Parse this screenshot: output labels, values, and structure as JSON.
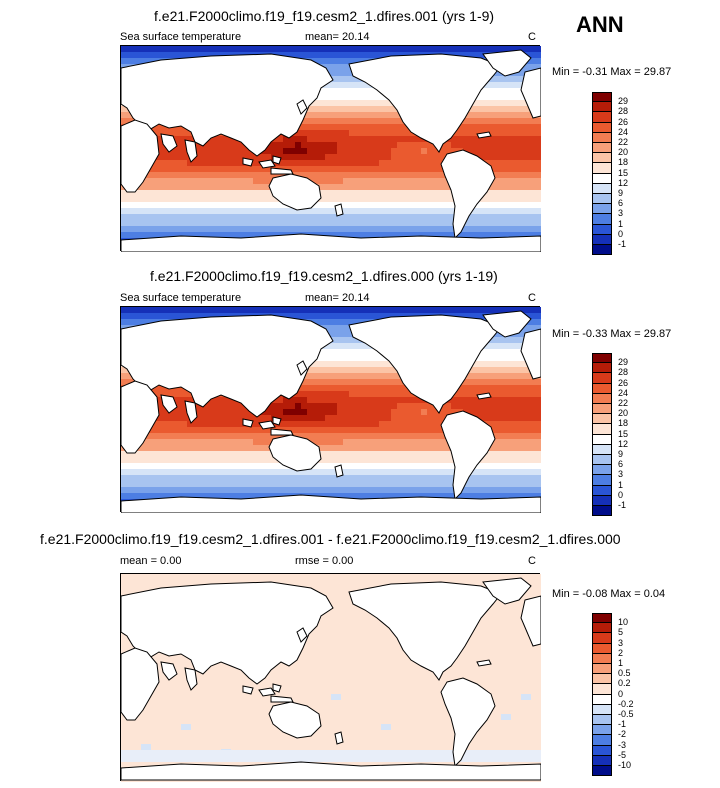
{
  "season": "ANN",
  "panels": [
    {
      "title": "f.e21.F2000climo.f19_f19.cesm2_1.dfires.001 (yrs 1-9)",
      "left_label": "Sea surface temperature",
      "center_label": "mean=  20.14",
      "units": "C",
      "minmax": "Min =  -0.31 Max =  29.87",
      "colorbar": {
        "levels": [
          "29",
          "28",
          "26",
          "24",
          "22",
          "20",
          "18",
          "15",
          "12",
          "9",
          "6",
          "3",
          "1",
          "0",
          "-1"
        ],
        "colors": [
          "#7f0000",
          "#b51c08",
          "#d83a1a",
          "#ea5a2f",
          "#f27d52",
          "#f7a07a",
          "#fbc4a6",
          "#fde5d6",
          "#ffffff",
          "#d6e4f7",
          "#a8c4f0",
          "#7aa2ea",
          "#4d7ee3",
          "#2a55d6",
          "#1530b8",
          "#000d8a"
        ]
      }
    },
    {
      "title": "f.e21.F2000climo.f19_f19.cesm2_1.dfires.000 (yrs 1-19)",
      "left_label": "Sea surface temperature",
      "center_label": "mean=  20.14",
      "units": "C",
      "minmax": "Min =  -0.33 Max =  29.87",
      "colorbar": {
        "levels": [
          "29",
          "28",
          "26",
          "24",
          "22",
          "20",
          "18",
          "15",
          "12",
          "9",
          "6",
          "3",
          "1",
          "0",
          "-1"
        ],
        "colors": [
          "#7f0000",
          "#b51c08",
          "#d83a1a",
          "#ea5a2f",
          "#f27d52",
          "#f7a07a",
          "#fbc4a6",
          "#fde5d6",
          "#ffffff",
          "#d6e4f7",
          "#a8c4f0",
          "#7aa2ea",
          "#4d7ee3",
          "#2a55d6",
          "#1530b8",
          "#000d8a"
        ]
      }
    },
    {
      "title": "f.e21.F2000climo.f19_f19.cesm2_1.dfires.001 - f.e21.F2000climo.f19_f19.cesm2_1.dfires.000",
      "left_label": "mean =   0.00",
      "center_label": "rmse =   0.00",
      "units": "C",
      "minmax": "Min =  -0.08 Max =   0.04",
      "colorbar": {
        "levels": [
          "10",
          "5",
          "3",
          "2",
          "1",
          "0.5",
          "0.2",
          "0",
          "-0.2",
          "-0.5",
          "-1",
          "-2",
          "-3",
          "-5",
          "-10"
        ],
        "colors": [
          "#7f0000",
          "#b51c08",
          "#d83a1a",
          "#ea5a2f",
          "#f27d52",
          "#f7a07a",
          "#fbc4a6",
          "#fde5d6",
          "#ffffff",
          "#d6e4f7",
          "#a8c4f0",
          "#7aa2ea",
          "#4d7ee3",
          "#2a55d6",
          "#1530b8",
          "#000d8a"
        ]
      }
    }
  ],
  "chart_data": [
    {
      "type": "heatmap",
      "title": "f.e21.F2000climo.f19_f19.cesm2_1.dfires.001 (yrs 1-9)",
      "field": "Sea surface temperature",
      "units": "C",
      "mean": 20.14,
      "min": -0.31,
      "max": 29.87,
      "contour_levels": [
        -1,
        0,
        1,
        3,
        6,
        9,
        12,
        15,
        18,
        20,
        22,
        24,
        26,
        28,
        29
      ]
    },
    {
      "type": "heatmap",
      "title": "f.e21.F2000climo.f19_f19.cesm2_1.dfires.000 (yrs 1-19)",
      "field": "Sea surface temperature",
      "units": "C",
      "mean": 20.14,
      "min": -0.33,
      "max": 29.87,
      "contour_levels": [
        -1,
        0,
        1,
        3,
        6,
        9,
        12,
        15,
        18,
        20,
        22,
        24,
        26,
        28,
        29
      ]
    },
    {
      "type": "heatmap",
      "title": "f.e21.F2000climo.f19_f19.cesm2_1.dfires.001 - f.e21.F2000climo.f19_f19.cesm2_1.dfires.000",
      "units": "C",
      "mean": 0.0,
      "rmse": 0.0,
      "min": -0.08,
      "max": 0.04,
      "contour_levels": [
        -10,
        -5,
        -3,
        -2,
        -1,
        -0.5,
        -0.2,
        0,
        0.2,
        0.5,
        1,
        2,
        3,
        5,
        10
      ]
    }
  ]
}
